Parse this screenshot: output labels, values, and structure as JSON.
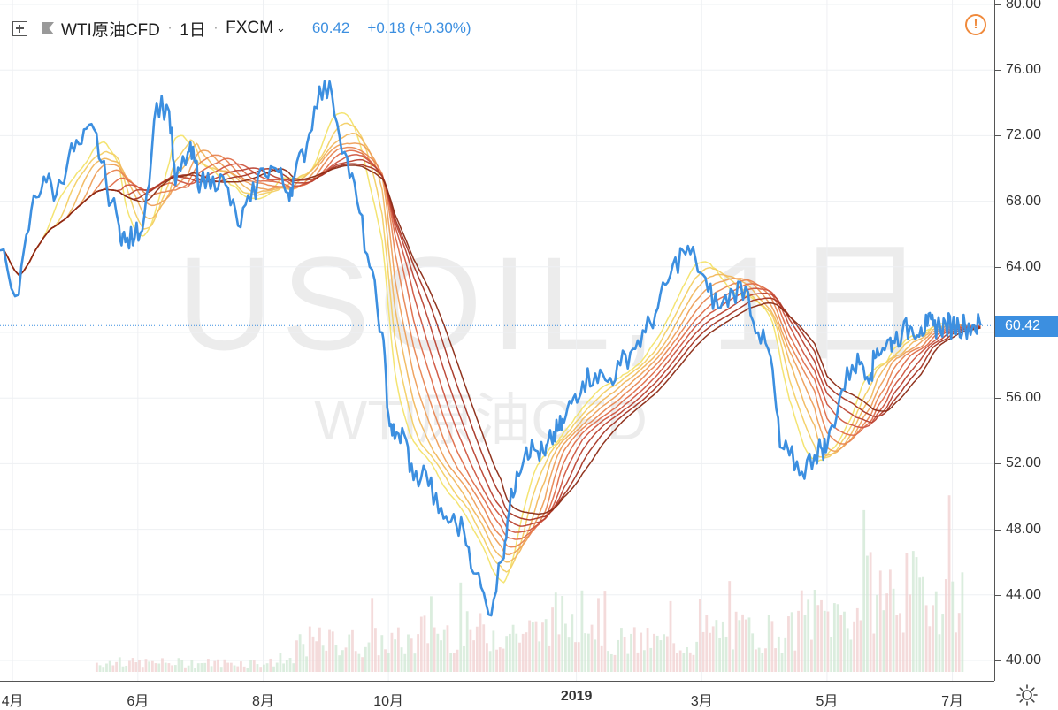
{
  "header": {
    "symbol": "WTI原油CFD",
    "interval": "1日",
    "exchange": "FXCM",
    "price": "60.42",
    "change": "+0.18 (+0.30%)"
  },
  "watermark": {
    "main": "USOIL, 1日",
    "sub": "WTI原油CFD"
  },
  "price_tag": "60.42",
  "colors": {
    "price_line": "#3c8fe0",
    "ribbon_fast": "#f3e36a",
    "ribbon_slow": "#8b2a14",
    "volume_up": "#cfe7d3",
    "volume_down": "#f0cfcf",
    "warning": "#f08a3c"
  },
  "icons": {
    "add": "plus-box-icon",
    "flag": "flag-icon",
    "warning": "warning-icon",
    "settings": "gear-icon"
  },
  "chart_data": {
    "type": "line",
    "title": "WTI原油CFD",
    "interval": "1日",
    "ylim": [
      40,
      80
    ],
    "y_ticks": [
      "40.00",
      "44.00",
      "48.00",
      "52.00",
      "56.00",
      "60.00",
      "64.00",
      "68.00",
      "72.00",
      "76.00",
      "80.00"
    ],
    "x_ticks": [
      {
        "label": "4月",
        "x": 0
      },
      {
        "label": "6月",
        "x": 2
      },
      {
        "label": "8月",
        "x": 4
      },
      {
        "label": "10月",
        "x": 6
      },
      {
        "label": "2019",
        "x": 9,
        "bold": true
      },
      {
        "label": "3月",
        "x": 11
      },
      {
        "label": "5月",
        "x": 13
      },
      {
        "label": "7月",
        "x": 15
      }
    ],
    "x_range": [
      -0.2,
      15.5
    ],
    "series": [
      {
        "name": "WTI原油CFD",
        "x": [
          -0.2,
          0.1,
          0.3,
          0.5,
          0.7,
          0.9,
          1.1,
          1.3,
          1.5,
          1.7,
          1.8,
          1.95,
          2.1,
          2.3,
          2.5,
          2.6,
          2.8,
          2.9,
          3.0,
          3.2,
          3.4,
          3.6,
          3.8,
          4.0,
          4.2,
          4.4,
          4.5,
          4.7,
          4.9,
          5.1,
          5.3,
          5.5,
          5.7,
          5.9,
          6.0,
          6.1,
          6.25,
          6.4,
          6.6,
          6.8,
          7.0,
          7.2,
          7.4,
          7.6,
          7.8,
          7.9,
          8.05,
          8.2,
          8.35,
          8.5,
          8.6,
          8.7,
          8.8,
          8.95,
          9.1,
          9.3,
          9.5,
          9.7,
          9.9,
          10.1,
          10.3,
          10.5,
          10.7,
          10.9,
          11.1,
          11.3,
          11.5,
          11.7,
          11.9,
          12.1,
          12.25,
          12.4,
          12.6,
          12.8,
          12.9,
          13.0,
          13.2,
          13.4,
          13.55,
          13.7,
          13.8,
          13.95,
          14.05,
          14.2,
          14.35,
          14.5,
          14.6,
          14.7,
          14.8,
          14.9,
          15.0,
          15.1,
          15.2,
          15.35,
          15.45
        ],
        "values": [
          65.0,
          62.3,
          67.5,
          69.5,
          68.4,
          70.8,
          71.5,
          72.4,
          69.0,
          66.5,
          65.5,
          65.8,
          67.0,
          74.0,
          73.5,
          69.0,
          71.0,
          70.5,
          69.0,
          69.5,
          69.0,
          66.5,
          68.0,
          70.0,
          70.0,
          68.5,
          69.5,
          71.5,
          75.0,
          74.5,
          71.0,
          68.0,
          64.0,
          60.0,
          55.0,
          53.5,
          53.8,
          51.0,
          51.5,
          49.0,
          48.5,
          48.0,
          45.3,
          42.8,
          46.0,
          48.5,
          51.5,
          53.0,
          52.8,
          52.5,
          53.5,
          54.0,
          54.5,
          56.0,
          57.0,
          57.5,
          57.0,
          58.0,
          59.0,
          60.0,
          61.5,
          63.5,
          65.0,
          64.5,
          62.5,
          61.5,
          62.5,
          62.8,
          60.0,
          58.5,
          53.0,
          52.5,
          51.5,
          52.5,
          53.0,
          53.0,
          56.0,
          58.0,
          58.2,
          57.5,
          59.0,
          59.3,
          59.5,
          60.0,
          60.3,
          60.3,
          60.4,
          60.42,
          60.42,
          60.42,
          60.42,
          60.42,
          60.42,
          60.42,
          60.42
        ]
      }
    ],
    "volume": {
      "ylim": [
        0,
        100
      ],
      "note": "relative units"
    },
    "grid": true
  }
}
